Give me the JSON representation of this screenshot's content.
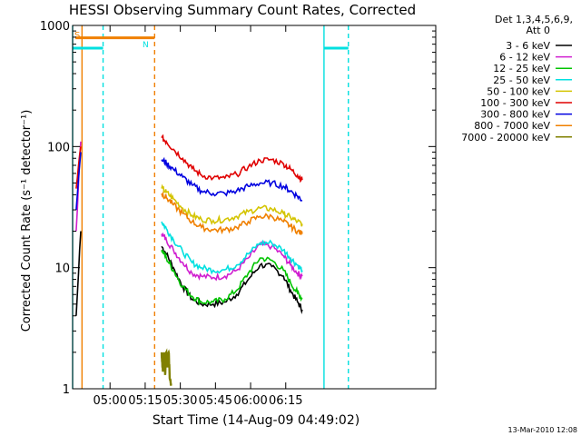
{
  "chart_data": {
    "type": "line",
    "title": "HESSI Observing Summary Count Rates, Corrected",
    "xlabel": "Start Time (14-Aug-09 04:49:02)",
    "ylabel": "Corrected Count Rate (s⁻¹ detector⁻¹)",
    "x_unit": "minutes after 04:49:02 UT",
    "xlim": [
      -5.0,
      150.0
    ],
    "ylim": [
      1,
      1000
    ],
    "yscale": "log",
    "x_ticks": [
      {
        "x": 10.97,
        "label": "05:00"
      },
      {
        "x": 25.97,
        "label": "05:15"
      },
      {
        "x": 40.97,
        "label": "05:30"
      },
      {
        "x": 55.97,
        "label": "05:45"
      },
      {
        "x": 70.97,
        "label": "06:00"
      },
      {
        "x": 85.97,
        "label": "06:15"
      }
    ],
    "y_ticks": [
      {
        "y": 1,
        "label": "1"
      },
      {
        "y": 10,
        "label": "10"
      },
      {
        "y": 100,
        "label": "100"
      },
      {
        "y": 1000,
        "label": "1000"
      }
    ],
    "legend_header": [
      "Det 1,3,4,5,6,9,",
      "Att 0"
    ],
    "legend_position": "right",
    "series": [
      {
        "name": "3 - 6 keV",
        "color": "#000000",
        "segments": [
          {
            "x": [
              -3.5,
              -3.0,
              -2.5,
              -2.0,
              -1.5
            ],
            "y": [
              4.0,
              6.0,
              9.0,
              14.0,
              20.0
            ]
          },
          {
            "x": [
              33,
              35,
              38,
              42,
              46,
              50,
              55,
              60,
              65,
              70,
              75,
              80,
              85,
              88,
              91,
              93
            ],
            "y": [
              15,
              13,
              10,
              7,
              5.5,
              5,
              5,
              5.2,
              6,
              8,
              10.5,
              10.2,
              8.5,
              6.5,
              5.2,
              4.5
            ]
          }
        ]
      },
      {
        "name": "6 - 12 keV",
        "color": "#d01fd0",
        "segments": [
          {
            "x": [
              -3.5,
              -3.0,
              -2.5,
              -2.0,
              -1.5
            ],
            "y": [
              20,
              30,
              50,
              80,
              110
            ]
          },
          {
            "x": [
              33,
              35,
              38,
              42,
              46,
              50,
              55,
              60,
              65,
              70,
              75,
              80,
              85,
              88,
              91,
              93
            ],
            "y": [
              19,
              17,
              14,
              11,
              9,
              8.5,
              8.3,
              8.5,
              9.5,
              12,
              15.5,
              15,
              12.5,
              10.5,
              9,
              8.5
            ]
          }
        ]
      },
      {
        "name": "12 - 25 keV",
        "color": "#00c400",
        "segments": [
          {
            "x": [
              33,
              35,
              38,
              42,
              46,
              50,
              55,
              60,
              65,
              70,
              75,
              80,
              85,
              88,
              91,
              93
            ],
            "y": [
              14,
              12,
              9.5,
              7,
              5.8,
              5.2,
              5.2,
              5.5,
              6.5,
              9,
              12,
              11.5,
              9.5,
              7.5,
              6.2,
              5.5
            ]
          }
        ]
      },
      {
        "name": "25 - 50 keV",
        "color": "#00e0e0",
        "segments": [
          {
            "x": [
              33,
              35,
              38,
              42,
              46,
              50,
              55,
              60,
              65,
              70,
              75,
              80,
              85,
              88,
              91,
              93
            ],
            "y": [
              24,
              21,
              17,
              13.5,
              11,
              10,
              9.5,
              9.6,
              10.5,
              13,
              16,
              16,
              14,
              12,
              10.5,
              9.5
            ]
          }
        ]
      },
      {
        "name": "50 - 100 keV",
        "color": "#d4c400",
        "segments": [
          {
            "x": [
              33,
              35,
              38,
              42,
              46,
              50,
              55,
              60,
              65,
              70,
              75,
              80,
              85,
              88,
              91,
              93
            ],
            "y": [
              45,
              42,
              37,
              31,
              27,
              25,
              24.5,
              25,
              26.5,
              29,
              31,
              30.5,
              28,
              26,
              24,
              23
            ]
          }
        ]
      },
      {
        "name": "100 - 300 keV",
        "color": "#e00000",
        "segments": [
          {
            "x": [
              -3.5,
              -3.0,
              -2.5,
              -2.0,
              -1.5
            ],
            "y": [
              45,
              55,
              70,
              85,
              100
            ]
          },
          {
            "x": [
              33,
              35,
              38,
              42,
              46,
              50,
              55,
              60,
              65,
              70,
              75,
              80,
              85,
              88,
              91,
              93
            ],
            "y": [
              118,
              110,
              95,
              80,
              66,
              58,
              55,
              55,
              59,
              68,
              77,
              78,
              72,
              65,
              58,
              53
            ]
          }
        ]
      },
      {
        "name": "300 - 800 keV",
        "color": "#0000e0",
        "segments": [
          {
            "x": [
              -3.5,
              -3.0,
              -2.5,
              -2.0,
              -1.5
            ],
            "y": [
              30,
              40,
              55,
              70,
              90
            ]
          },
          {
            "x": [
              33,
              35,
              38,
              42,
              46,
              50,
              55,
              60,
              65,
              70,
              75,
              80,
              85,
              88,
              91,
              93
            ],
            "y": [
              78,
              73,
              65,
              56,
              48,
              43,
              41,
              41,
              43,
              47,
              50,
              50,
              47,
              43,
              39,
              36
            ]
          }
        ]
      },
      {
        "name": "800 - 7000 keV",
        "color": "#f08000",
        "segments": [
          {
            "x": [
              33,
              35,
              38,
              42,
              46,
              50,
              55,
              60,
              65,
              70,
              75,
              80,
              85,
              88,
              91,
              93
            ],
            "y": [
              41,
              38,
              33,
              28,
              24,
              21.5,
              20.5,
              20.5,
              21.5,
              24,
              26.5,
              26.5,
              24,
              22,
              20,
              19
            ]
          }
        ]
      },
      {
        "name": "7000 - 20000 keV",
        "color": "#808000",
        "segments": [
          {
            "x": [
              33,
              33.5,
              34,
              34.5,
              35,
              35.5,
              36,
              36.5,
              37
            ],
            "y": [
              2.0,
              1.4,
              2.0,
              1.3,
              2.0,
              1.5,
              2.0,
              1.2,
              1.1
            ]
          }
        ]
      }
    ],
    "annotations": [
      {
        "text": "S",
        "color": "#f08000"
      },
      {
        "text": "N",
        "color": "#00e0e0"
      }
    ],
    "vertical_markers": [
      {
        "x": -5.0,
        "color": "#00e0e0",
        "style": "solid"
      },
      {
        "x": -1.0,
        "color": "#f08000",
        "style": "solid"
      },
      {
        "x": 8.0,
        "color": "#00e0e0",
        "style": "dashed"
      },
      {
        "x": 30.0,
        "color": "#f08000",
        "style": "dashed"
      },
      {
        "x": 102.3,
        "color": "#00e0e0",
        "style": "solid"
      },
      {
        "x": 112.7,
        "color": "#00e0e0",
        "style": "dashed"
      }
    ],
    "flag_bars": [
      {
        "x": [
          -5.0,
          8.0
        ],
        "y": 650,
        "color": "#00e0e0"
      },
      {
        "x": [
          -3.8,
          30.0
        ],
        "y": 790,
        "color": "#f08000"
      },
      {
        "x": [
          102.3,
          112.7
        ],
        "y": 650,
        "color": "#00e0e0"
      }
    ]
  },
  "footer": {
    "timestamp": "13-Mar-2010 12:08"
  }
}
